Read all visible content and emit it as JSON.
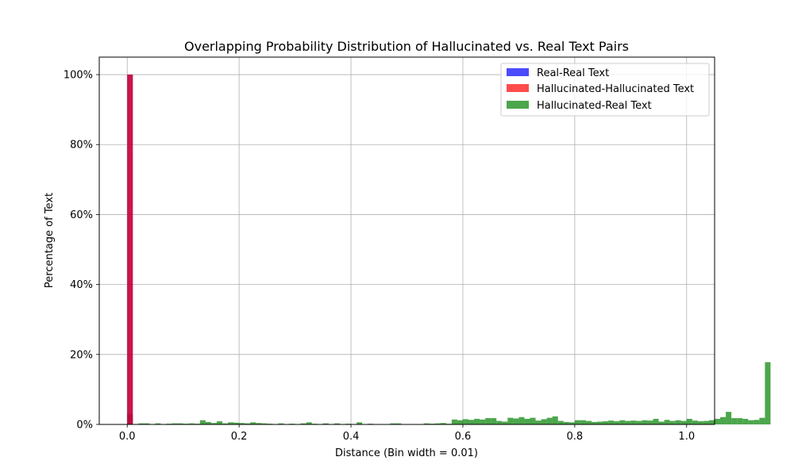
{
  "chart_data": {
    "type": "bar",
    "title": "Overlapping Probability Distribution of Hallucinated vs. Real Text Pairs",
    "xlabel": "Distance (Bin width = 0.01)",
    "ylabel": "Percentage of Text",
    "bin_width": 0.01,
    "xlim": [
      -0.05,
      1.05
    ],
    "ylim": [
      0,
      105
    ],
    "x_ticks": [
      "0.0",
      "0.2",
      "0.4",
      "0.6",
      "0.8",
      "1.0"
    ],
    "x_tick_values": [
      0.0,
      0.2,
      0.4,
      0.6,
      0.8,
      1.0
    ],
    "y_ticks": [
      "0%",
      "20%",
      "40%",
      "60%",
      "80%",
      "100%"
    ],
    "y_tick_values": [
      0,
      20,
      40,
      60,
      80,
      100
    ],
    "grid": true,
    "legend_position": "top-right",
    "series": [
      {
        "name": "Real-Real Text",
        "color": "#0000ff",
        "opacity": 0.7,
        "bins": [
          {
            "x": 0.0,
            "value": 100
          }
        ]
      },
      {
        "name": "Hallucinated-Hallucinated Text",
        "color": "#ff0000",
        "opacity": 0.7,
        "bins": [
          {
            "x": 0.0,
            "value": 100
          }
        ]
      },
      {
        "name": "Hallucinated-Real Text",
        "color": "#008000",
        "opacity": 0.7,
        "values": [
          3.0,
          0.1,
          0.3,
          0.3,
          0.1,
          0.3,
          0.1,
          0.2,
          0.3,
          0.3,
          0.2,
          0.3,
          0.2,
          1.2,
          0.7,
          0.4,
          0.9,
          0.3,
          0.6,
          0.5,
          0.4,
          0.3,
          0.6,
          0.4,
          0.3,
          0.2,
          0.1,
          0.3,
          0.1,
          0.2,
          0.1,
          0.3,
          0.6,
          0.2,
          0.1,
          0.3,
          0.1,
          0.3,
          0.1,
          0.2,
          0.1,
          0.6,
          0.1,
          0.2,
          0.1,
          0.1,
          0.1,
          0.3,
          0.3,
          0.1,
          0.1,
          0.1,
          0.1,
          0.3,
          0.2,
          0.3,
          0.4,
          0.2,
          1.4,
          1.2,
          1.5,
          1.3,
          1.6,
          1.4,
          1.8,
          1.8,
          1.0,
          0.8,
          1.9,
          1.7,
          2.1,
          1.6,
          1.9,
          1.1,
          1.5,
          1.9,
          2.3,
          1.0,
          0.7,
          0.6,
          1.2,
          1.2,
          1.0,
          0.7,
          0.8,
          0.9,
          1.1,
          0.9,
          1.2,
          1.0,
          1.1,
          1.0,
          1.2,
          1.1,
          1.6,
          0.8,
          1.3,
          1.0,
          1.2,
          1.0,
          1.6,
          1.1,
          0.9,
          1.0,
          1.2,
          1.6,
          2.1,
          3.6,
          1.8,
          1.8,
          1.6,
          1.2,
          1.3,
          1.9,
          17.8
        ],
        "values_start": 0.0
      }
    ]
  }
}
